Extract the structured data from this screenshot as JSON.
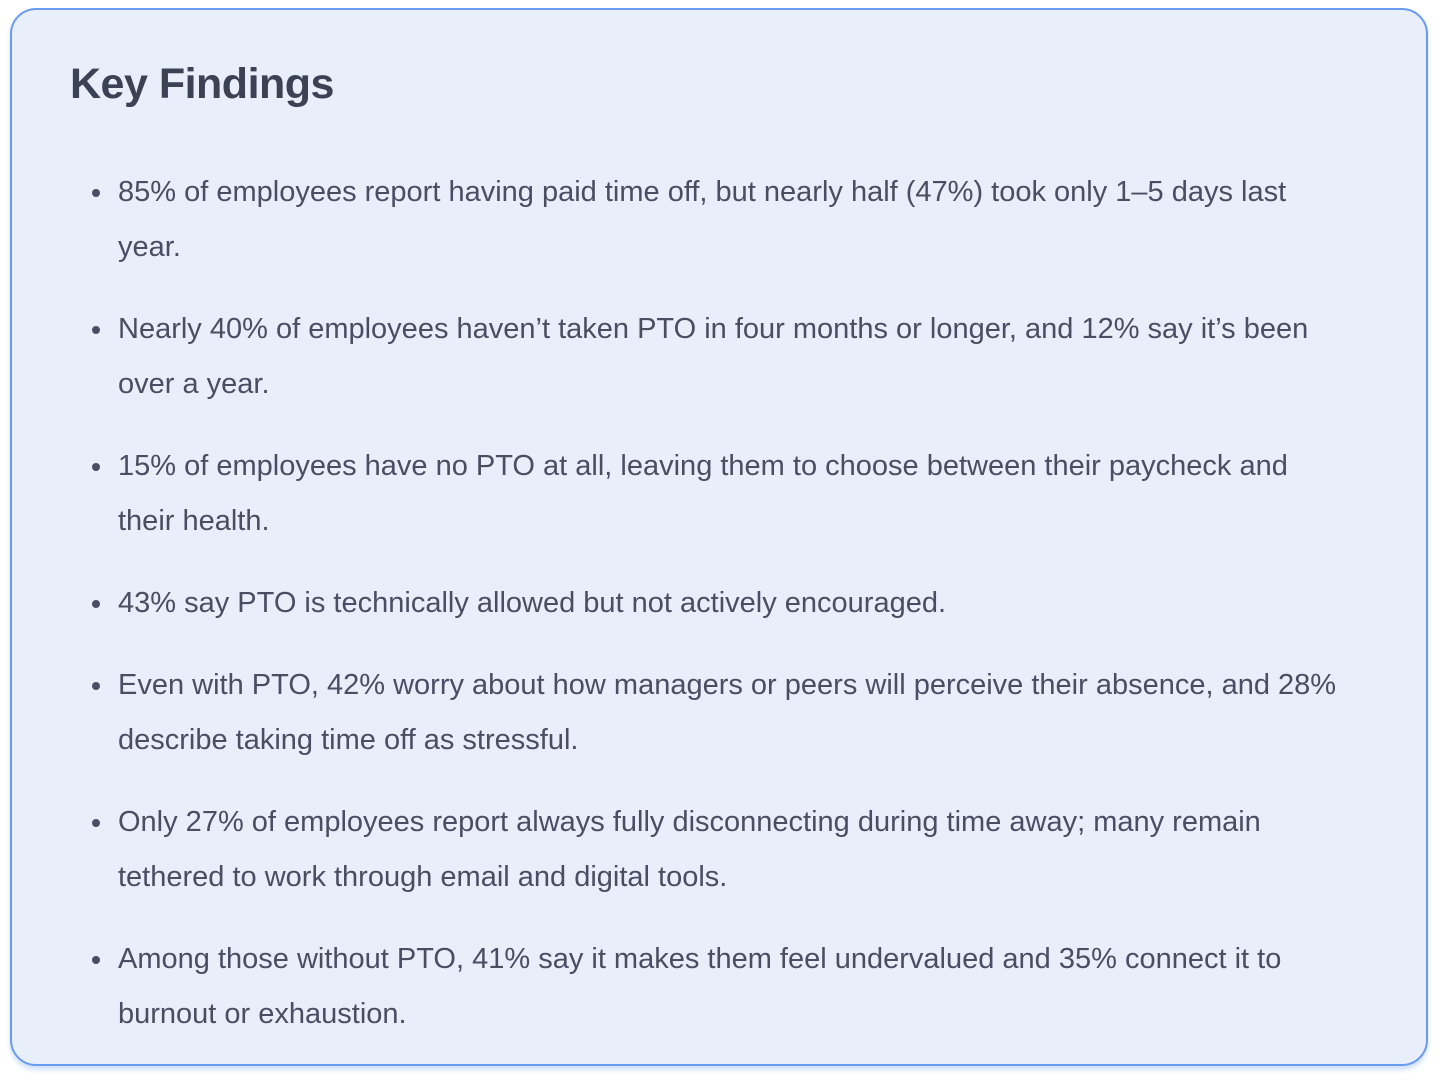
{
  "card": {
    "title": "Key Findings",
    "findings": [
      "85% of employees report having paid time off, but nearly half (47%) took only 1–5 days last year.",
      "Nearly 40% of employees haven’t taken PTO in four months or longer, and 12% say it’s been over a year.",
      "15% of employees have no PTO at all, leaving them to choose between their paycheck and their health.",
      "43% say PTO is technically allowed but not actively encouraged.",
      "Even with PTO, 42% worry about how managers or peers will perceive their absence, and 28% describe taking time off as stressful.",
      "Only 27% of employees report always fully disconnecting during time away; many remain tethered to work through email and digital tools.",
      "Among those without PTO, 41% say it makes them feel undervalued and 35% connect it to burnout or exhaustion."
    ],
    "colors": {
      "card_background": "#E9EEFB",
      "card_border": "#699BF0",
      "title_text": "#3B4254",
      "body_text": "#484F62"
    }
  }
}
